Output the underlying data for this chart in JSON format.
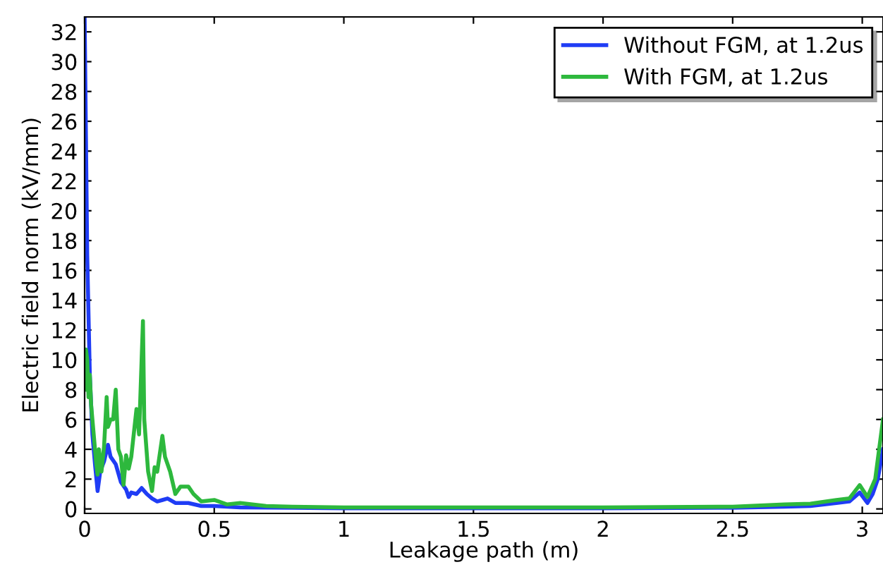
{
  "chart_data": {
    "type": "line",
    "xlabel": "Leakage path (m)",
    "ylabel": "Electric field norm (kV/mm)",
    "xlim": [
      0,
      3.08
    ],
    "ylim": [
      -0.3,
      33
    ],
    "xticks": [
      0,
      0.5,
      1,
      1.5,
      2,
      2.5,
      3
    ],
    "yticks": [
      0,
      2,
      4,
      6,
      8,
      10,
      12,
      14,
      16,
      18,
      20,
      22,
      24,
      26,
      28,
      30,
      32
    ],
    "grid": false,
    "legend": "top right",
    "line_style": "solid",
    "marker": "none",
    "series": [
      {
        "name": "Without FGM, at 1.2us",
        "color": "#1f3cf5",
        "x": [
          0,
          0.005,
          0.01,
          0.02,
          0.03,
          0.04,
          0.05,
          0.06,
          0.075,
          0.09,
          0.1,
          0.12,
          0.14,
          0.16,
          0.17,
          0.18,
          0.2,
          0.22,
          0.24,
          0.26,
          0.28,
          0.3,
          0.32,
          0.35,
          0.4,
          0.45,
          0.5,
          0.6,
          0.8,
          1,
          1.5,
          2,
          2.5,
          2.7,
          2.8,
          2.9,
          2.95,
          2.99,
          3.02,
          3.04,
          3.06,
          3.08
        ],
        "values": [
          33,
          25,
          17,
          9,
          5,
          3,
          1.2,
          2.5,
          3.2,
          4.3,
          3.5,
          3,
          1.8,
          1.3,
          0.8,
          1.1,
          1.0,
          1.4,
          1.0,
          0.7,
          0.5,
          0.6,
          0.7,
          0.4,
          0.4,
          0.2,
          0.2,
          0.1,
          0.08,
          0.05,
          0.04,
          0.05,
          0.08,
          0.15,
          0.2,
          0.4,
          0.5,
          1.1,
          0.4,
          1.0,
          2,
          4
        ]
      },
      {
        "name": "With FGM, at 1.2us",
        "color": "#2db83d",
        "x": [
          0,
          0.005,
          0.01,
          0.015,
          0.02,
          0.025,
          0.035,
          0.045,
          0.05,
          0.055,
          0.065,
          0.075,
          0.085,
          0.09,
          0.1,
          0.11,
          0.12,
          0.13,
          0.14,
          0.15,
          0.16,
          0.17,
          0.18,
          0.2,
          0.21,
          0.225,
          0.23,
          0.245,
          0.26,
          0.27,
          0.28,
          0.3,
          0.31,
          0.33,
          0.35,
          0.37,
          0.4,
          0.42,
          0.45,
          0.5,
          0.55,
          0.6,
          0.7,
          0.8,
          1,
          1.5,
          2,
          2.5,
          2.7,
          2.8,
          2.9,
          2.95,
          2.99,
          3.02,
          3.05,
          3.08
        ],
        "values": [
          8,
          10.7,
          10,
          7.5,
          9,
          7,
          5,
          3,
          2.3,
          4,
          2.5,
          4.2,
          7.5,
          5.5,
          6,
          6,
          8,
          4,
          3.5,
          1.6,
          3.6,
          2.7,
          3.5,
          6.7,
          5,
          12.6,
          6,
          2.5,
          1.2,
          2.8,
          2.5,
          4.9,
          3.5,
          2.5,
          1.0,
          1.5,
          1.5,
          1.0,
          0.5,
          0.6,
          0.3,
          0.4,
          0.2,
          0.15,
          0.1,
          0.1,
          0.1,
          0.15,
          0.3,
          0.35,
          0.6,
          0.7,
          1.6,
          0.8,
          2,
          6
        ]
      }
    ]
  }
}
